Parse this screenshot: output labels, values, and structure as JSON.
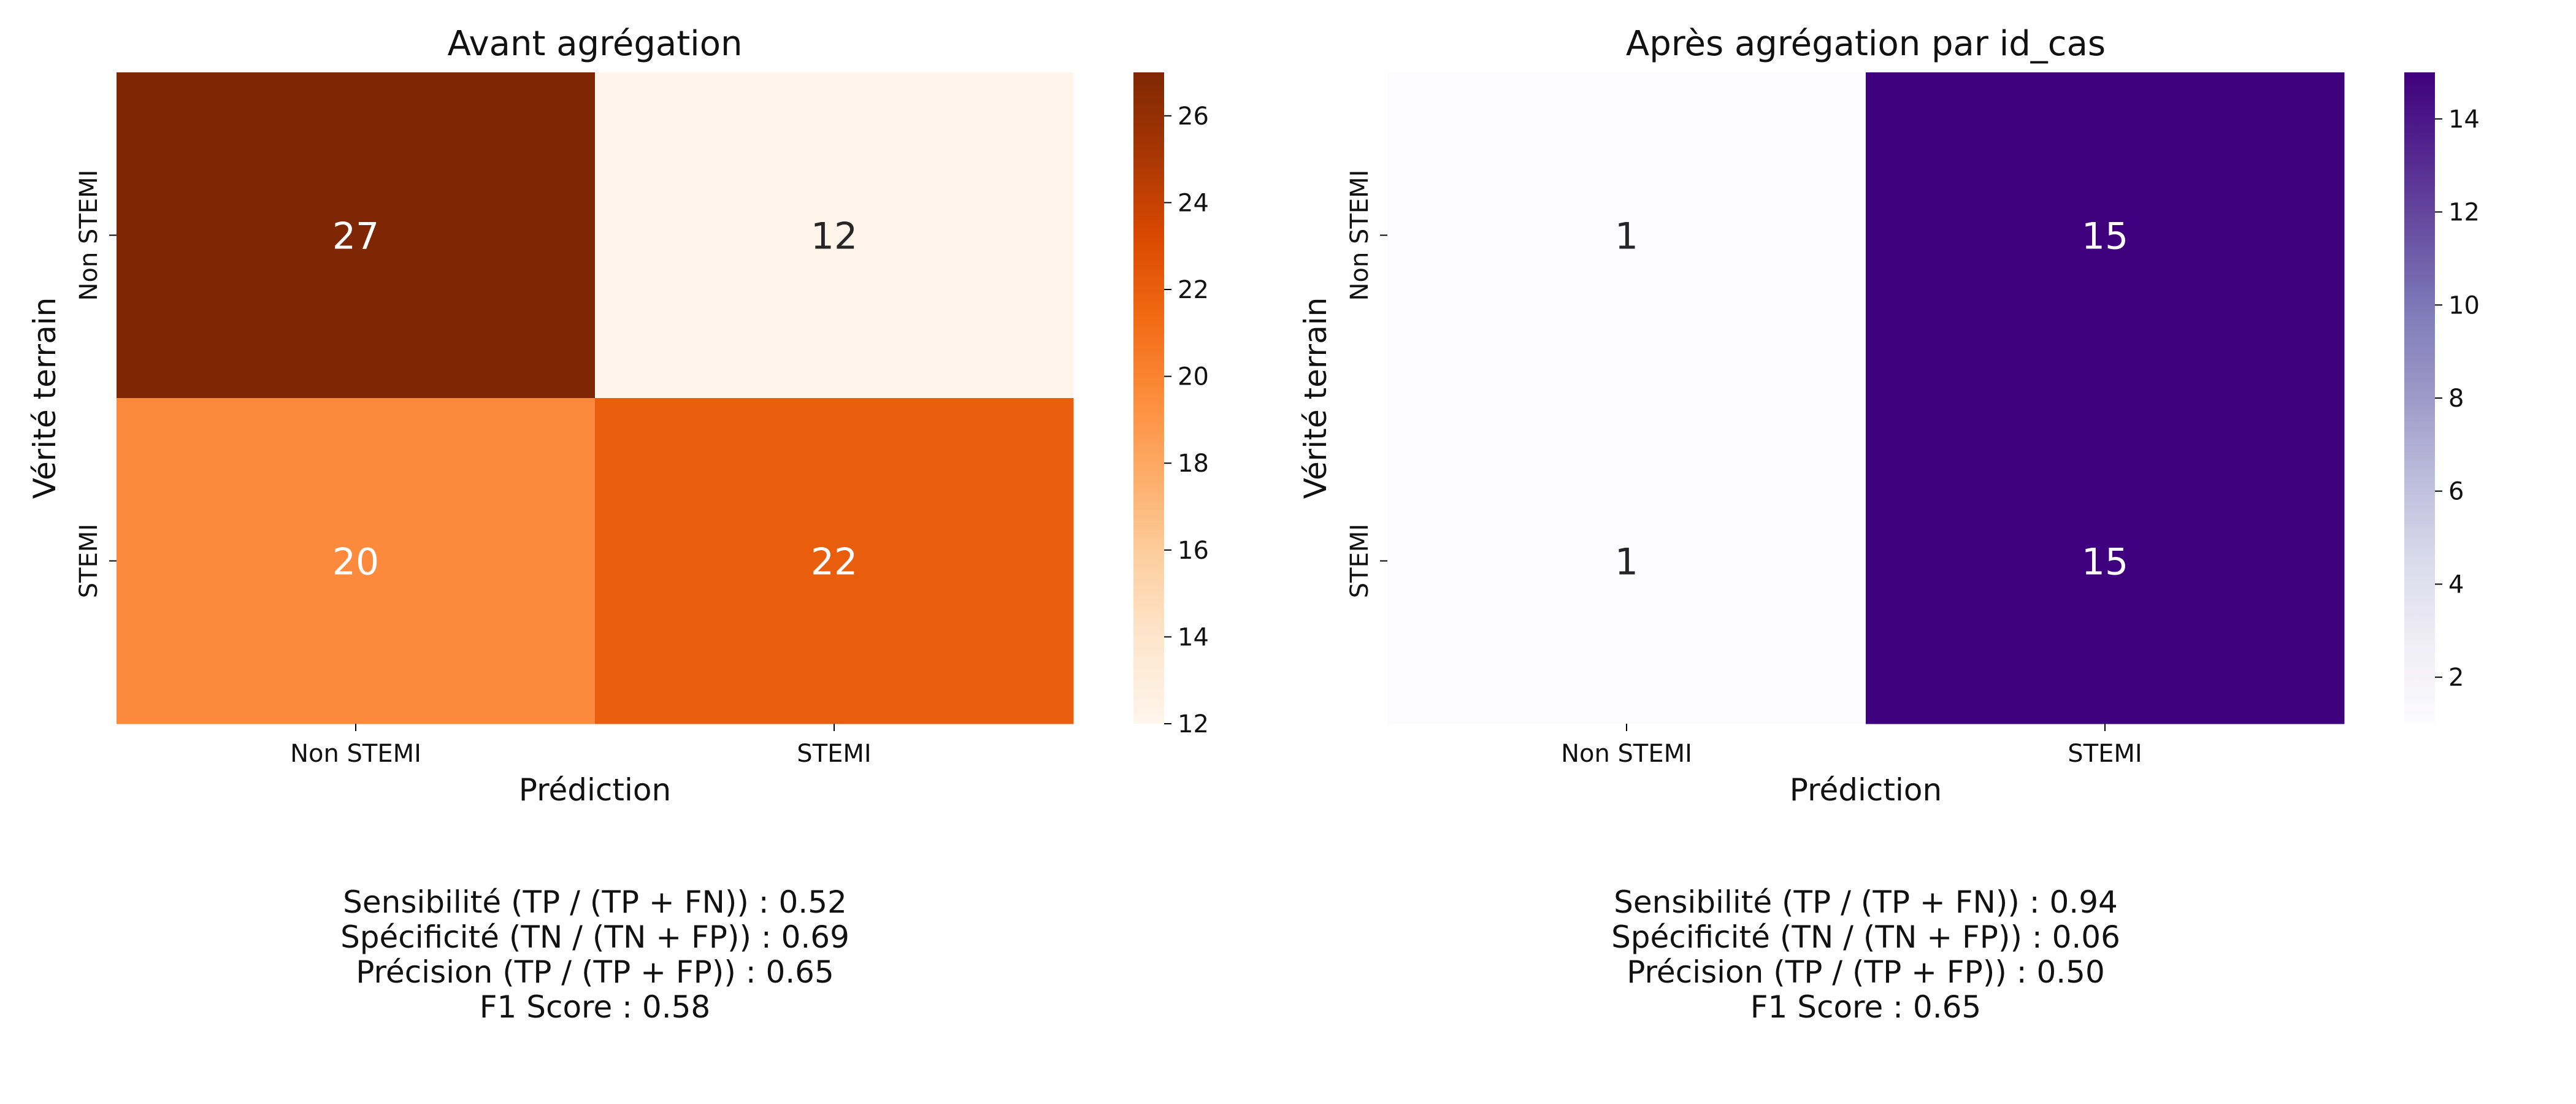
{
  "chart_data": [
    {
      "type": "heatmap",
      "title": "Avant agrégation",
      "xlabel": "Prédiction",
      "ylabel": "Vérité terrain",
      "x_categories": [
        "Non STEMI",
        "STEMI"
      ],
      "y_categories": [
        "Non STEMI",
        "STEMI"
      ],
      "values": [
        [
          27,
          12
        ],
        [
          20,
          22
        ]
      ],
      "colormap": "Oranges",
      "cell_colors": [
        [
          "#7f2704",
          "#fff5eb"
        ],
        [
          "#fd8a3c",
          "#e95e0d"
        ]
      ],
      "annotation_colors": [
        [
          "#ffffff",
          "#262626"
        ],
        [
          "#ffffff",
          "#ffffff"
        ]
      ],
      "colorbar": {
        "range": [
          12,
          27
        ],
        "ticks": [
          "12",
          "14",
          "16",
          "18",
          "20",
          "22",
          "24",
          "26"
        ],
        "gradient": [
          "#fff5eb",
          "#fee6ce",
          "#fdd0a2",
          "#fdae6b",
          "#fd8d3c",
          "#f16913",
          "#d94801",
          "#a63603",
          "#7f2704"
        ]
      },
      "metrics": [
        "Sensibilité (TP / (TP + FN)) : 0.52",
        "Spécificité (TN / (TN + FP)) : 0.69",
        "Précision (TP / (TP + FP)) : 0.65",
        "F1 Score : 0.58"
      ]
    },
    {
      "type": "heatmap",
      "title": "Après agrégation par id_cas",
      "xlabel": "Prédiction",
      "ylabel": "Vérité terrain",
      "x_categories": [
        "Non STEMI",
        "STEMI"
      ],
      "y_categories": [
        "Non STEMI",
        "STEMI"
      ],
      "values": [
        [
          1,
          15
        ],
        [
          1,
          15
        ]
      ],
      "colormap": "Purples",
      "cell_colors": [
        [
          "#fcfbfd",
          "#3f007d"
        ],
        [
          "#fcfbfd",
          "#3f007d"
        ]
      ],
      "annotation_colors": [
        [
          "#262626",
          "#ffffff"
        ],
        [
          "#262626",
          "#ffffff"
        ]
      ],
      "colorbar": {
        "range": [
          1,
          15
        ],
        "ticks": [
          "2",
          "4",
          "6",
          "8",
          "10",
          "12",
          "14"
        ],
        "gradient": [
          "#fcfbfd",
          "#efedf5",
          "#dadaeb",
          "#bcbddc",
          "#9e9ac8",
          "#807dba",
          "#6a51a3",
          "#54278f",
          "#3f007d"
        ]
      },
      "metrics": [
        "Sensibilité (TP / (TP + FN)) : 0.94",
        "Spécificité (TN / (TN + FP)) : 0.06",
        "Précision (TP / (TP + FP)) : 0.50",
        "F1 Score : 0.65"
      ]
    }
  ]
}
